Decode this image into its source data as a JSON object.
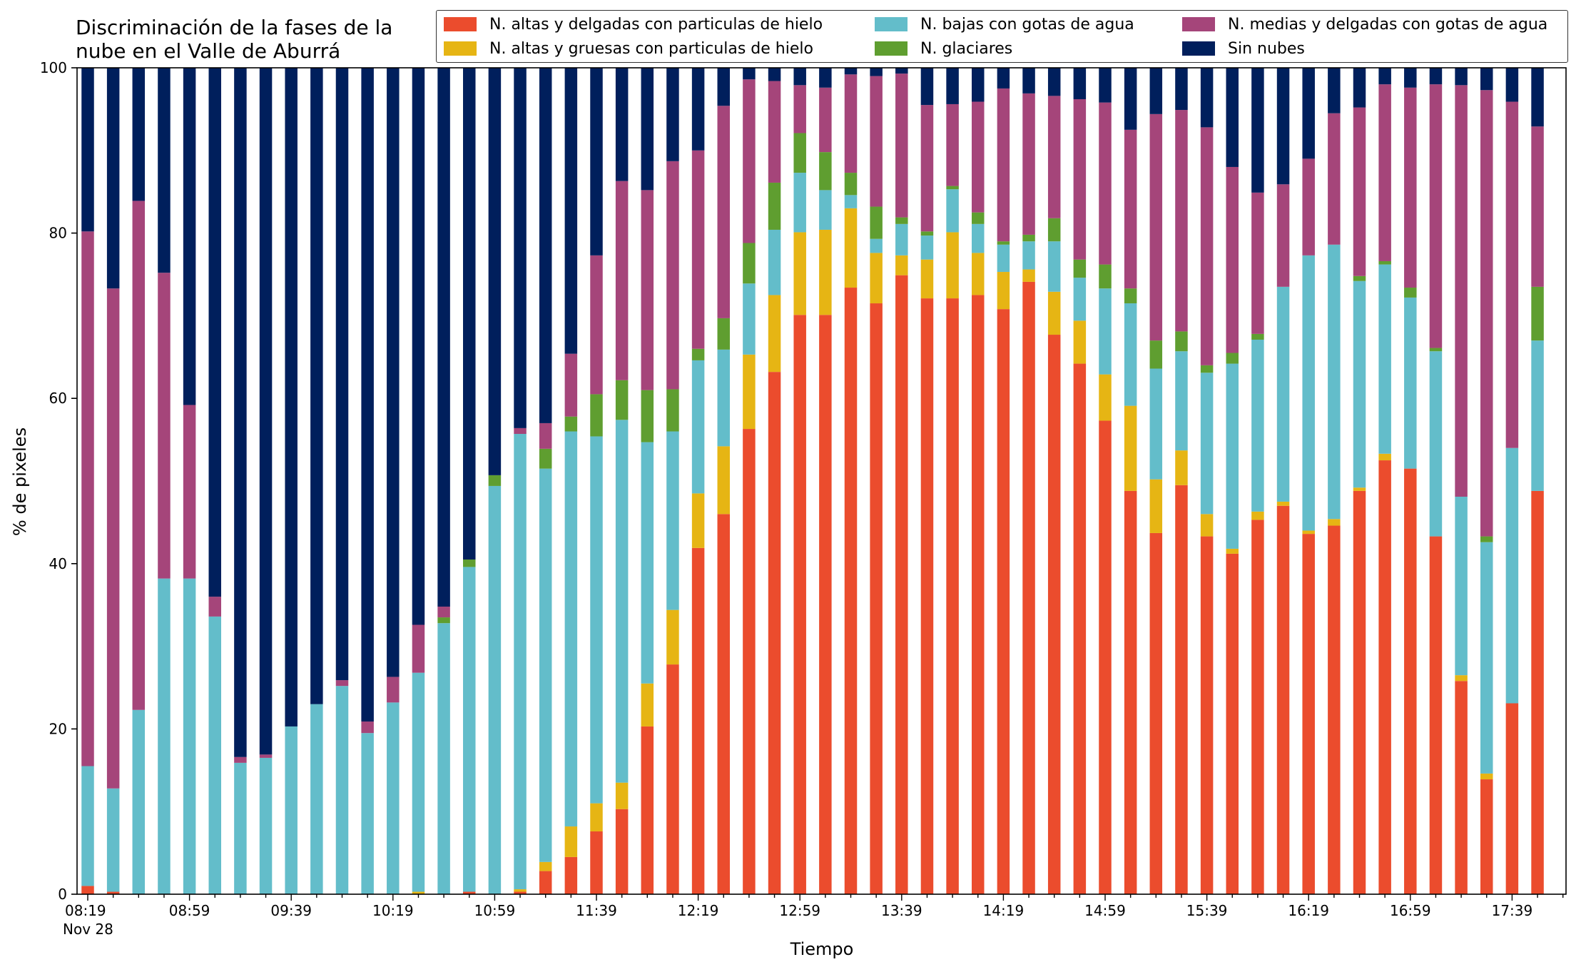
{
  "chart_data": {
    "type": "bar",
    "stacked": true,
    "title": "Discriminación de la fases de la nube en el Valle de Aburrá",
    "title_lines": [
      "Discriminación de la fases de la",
      "nube en el Valle de Aburrá"
    ],
    "xlabel": "Tiempo",
    "ylabel": "% de pixeles",
    "ylim": [
      0,
      100
    ],
    "yticks": [
      0,
      20,
      40,
      60,
      80,
      100
    ],
    "xlim_start_time": "08:19",
    "x_tick_labels": [
      "08:19",
      "08:59",
      "09:39",
      "10:19",
      "10:59",
      "11:39",
      "12:19",
      "12:59",
      "13:39",
      "14:19",
      "14:59",
      "15:39",
      "16:19",
      "16:59",
      "17:39"
    ],
    "x_tick_sublabel": "Nov 28",
    "interval_minutes": 10,
    "categories": [
      "08:19",
      "08:29",
      "08:39",
      "08:49",
      "08:59",
      "09:09",
      "09:19",
      "09:29",
      "09:39",
      "09:49",
      "09:59",
      "10:09",
      "10:19",
      "10:29",
      "10:39",
      "10:49",
      "10:59",
      "11:09",
      "11:19",
      "11:29",
      "11:39",
      "11:49",
      "11:59",
      "12:09",
      "12:19",
      "12:29",
      "12:39",
      "12:49",
      "12:59",
      "13:09",
      "13:19",
      "13:29",
      "13:39",
      "13:49",
      "13:59",
      "14:09",
      "14:19",
      "14:29",
      "14:39",
      "14:49",
      "14:59",
      "15:09",
      "15:19",
      "15:29",
      "15:39",
      "15:49",
      "15:59",
      "16:09",
      "16:19",
      "16:29",
      "16:39",
      "16:49",
      "16:59",
      "17:09",
      "17:19",
      "17:29",
      "17:39",
      "17:49"
    ],
    "legend_placement": "top-right",
    "series": [
      {
        "name": "N. altas y delgadas con particulas de hielo",
        "color": "#EB4C2D",
        "values": [
          1,
          0.3,
          0,
          0,
          0,
          0,
          0,
          0,
          0,
          0,
          0,
          0,
          0,
          0,
          0,
          0.3,
          0,
          0.3,
          2.8,
          4.5,
          7.6,
          10.3,
          20.3,
          27.8,
          41.9,
          46,
          56.3,
          63.2,
          70.1,
          70.1,
          73.4,
          71.5,
          74.9,
          72.1,
          72.1,
          72.5,
          70.8,
          74.1,
          67.7,
          64.2,
          57.3,
          48.8,
          43.7,
          49.5,
          43.3,
          41.2,
          45.3,
          47,
          43.6,
          44.6,
          48.8,
          52.5,
          51.5,
          43.3,
          25.8,
          13.9,
          23.1,
          48.8
        ]
      },
      {
        "name": "N. altas y gruesas con particulas de hielo",
        "color": "#E6B514",
        "values": [
          0,
          0,
          0,
          0,
          0,
          0,
          0,
          0,
          0,
          0,
          0,
          0,
          0,
          0.3,
          0,
          0,
          0,
          0.3,
          1.1,
          3.7,
          3.4,
          3.2,
          5.2,
          6.6,
          6.6,
          8.2,
          9,
          9.3,
          10,
          10.3,
          9.6,
          6.1,
          2.4,
          4.7,
          8,
          5.1,
          4.5,
          1.5,
          5.2,
          5.2,
          5.6,
          10.3,
          6.5,
          4.2,
          2.7,
          0.6,
          1,
          0.5,
          0.4,
          0.8,
          0.4,
          0.8,
          0,
          0,
          0.7,
          0.7,
          0,
          0
        ]
      },
      {
        "name": "N. bajas con gotas de agua",
        "color": "#63BDCA",
        "values": [
          14.5,
          12.5,
          22.3,
          38.2,
          38.2,
          33.6,
          15.9,
          16.5,
          20.3,
          23,
          25.2,
          19.5,
          23.2,
          26.5,
          32.8,
          39.3,
          49.4,
          55.1,
          47.6,
          47.8,
          44.4,
          43.9,
          29.2,
          21.6,
          16.1,
          11.7,
          8.6,
          7.9,
          7.2,
          4.8,
          1.6,
          1.7,
          3.8,
          2.9,
          5.2,
          3.5,
          3.3,
          3.4,
          6.1,
          5.2,
          10.4,
          12.4,
          13.4,
          12,
          17.1,
          22.4,
          20.8,
          26,
          33.3,
          33.2,
          25,
          22.9,
          20.7,
          22.4,
          21.6,
          28,
          30.9,
          18.2
        ]
      },
      {
        "name": "N. glaciares",
        "color": "#5F9E30",
        "values": [
          0,
          0,
          0,
          0,
          0,
          0,
          0,
          0,
          0,
          0,
          0,
          0,
          0,
          0,
          0.7,
          0.9,
          1.3,
          0,
          2.4,
          1.8,
          5.1,
          4.8,
          6.3,
          5.1,
          1.4,
          3.8,
          4.9,
          5.7,
          4.8,
          4.6,
          2.7,
          3.9,
          0.8,
          0.5,
          0.4,
          1.4,
          0.4,
          0.8,
          2.8,
          2.2,
          2.9,
          1.8,
          3.4,
          2.4,
          0.9,
          1.3,
          0.7,
          0,
          0,
          0,
          0.6,
          0.4,
          1.2,
          0.4,
          0,
          0.7,
          0,
          6.5
        ]
      },
      {
        "name": "N. medias y delgadas con gotas de agua",
        "color": "#A5457A",
        "values": [
          64.7,
          60.5,
          61.6,
          37,
          21,
          2.4,
          0.7,
          0.4,
          0,
          0,
          0.7,
          1.4,
          3.1,
          5.8,
          1.3,
          0,
          0,
          0.7,
          3.1,
          7.6,
          16.8,
          24.1,
          24.2,
          27.6,
          24,
          25.7,
          19.8,
          12.3,
          5.8,
          7.8,
          11.9,
          15.8,
          17.4,
          15.3,
          9.9,
          13.4,
          18.5,
          17.1,
          14.8,
          19.4,
          19.6,
          19.2,
          27.4,
          26.8,
          28.8,
          22.5,
          17.1,
          12.4,
          11.7,
          15.9,
          20.4,
          21.4,
          24.2,
          31.9,
          49.8,
          54,
          41.9,
          19.4
        ]
      },
      {
        "name": "Sin nubes",
        "color": "#001F5C",
        "values": [
          19.8,
          26.7,
          16.1,
          24.8,
          40.8,
          64,
          83.4,
          83.1,
          79.7,
          77,
          74.1,
          79.1,
          73.7,
          67.4,
          65.2,
          59.5,
          49.3,
          43.6,
          43,
          34.6,
          22.7,
          13.7,
          14.8,
          11.3,
          10,
          4.6,
          1.4,
          1.6,
          2.1,
          2.4,
          0.8,
          1,
          0.7,
          4.5,
          4.4,
          4.1,
          2.5,
          3.1,
          3.4,
          3.8,
          4.2,
          7.5,
          5.6,
          5.1,
          7.2,
          12,
          15.1,
          14.1,
          11,
          5.5,
          4.8,
          2,
          2.4,
          2,
          2.1,
          2.7,
          4.1,
          7.1
        ]
      }
    ]
  }
}
